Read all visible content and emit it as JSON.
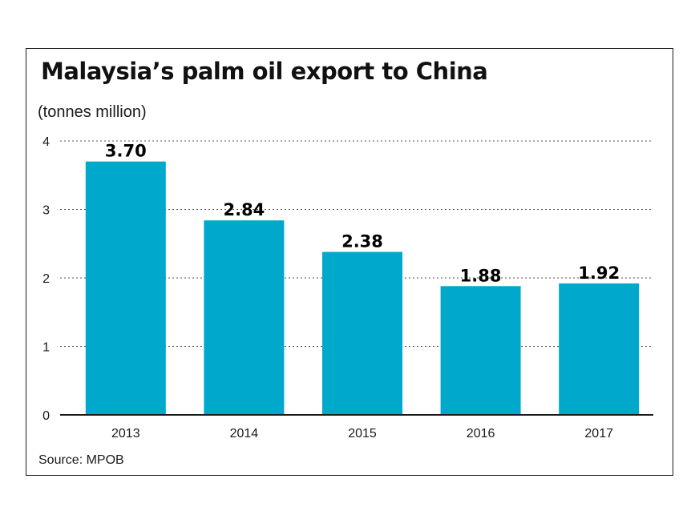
{
  "chart_data": {
    "type": "bar",
    "title": "Malaysia’s palm oil export to China",
    "ylabel": "(tonnes million)",
    "categories": [
      "2013",
      "2014",
      "2015",
      "2016",
      "2017"
    ],
    "values": [
      3.7,
      2.84,
      2.38,
      1.88,
      1.92
    ],
    "value_labels": [
      "3.70",
      "2.84",
      "2.38",
      "1.88",
      "1.92"
    ],
    "yticks": [
      "0",
      "1",
      "2",
      "3",
      "4"
    ],
    "ylim": [
      0,
      4
    ],
    "grid": "horizontal dotted",
    "bar_color": "#00a8cc",
    "source": "Source: MPOB"
  }
}
